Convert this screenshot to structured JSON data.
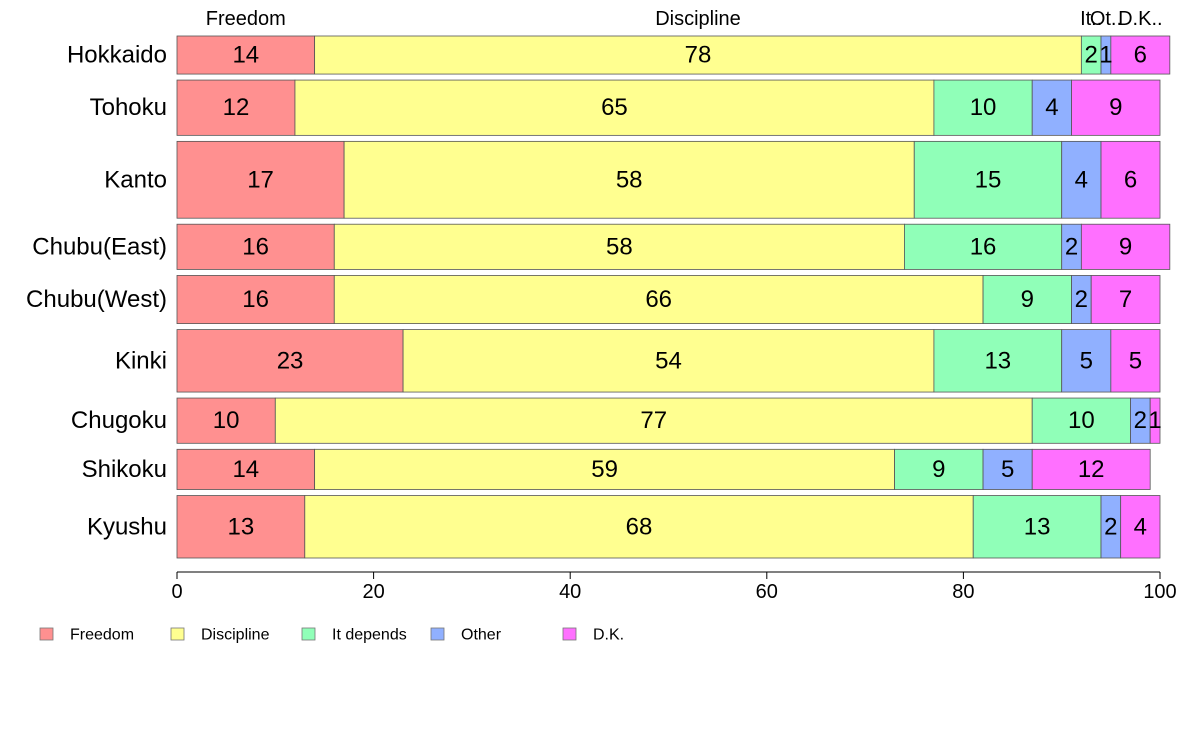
{
  "chart_data": {
    "type": "bar",
    "orientation": "horizontal",
    "stacked": true,
    "title": "",
    "xlabel": "",
    "ylabel": "",
    "xlim": [
      0,
      100
    ],
    "x_ticks": [
      "0",
      "20",
      "40",
      "60",
      "80",
      "100"
    ],
    "legend_position": "bottom-left",
    "grid": false,
    "top_labels": [
      "Freedom",
      "Discipline",
      "It..",
      "Ot..",
      "D.K.."
    ],
    "categories": [
      "Hokkaido",
      "Tohoku",
      "Kanto",
      "Chubu(East)",
      "Chubu(West)",
      "Kinki",
      "Chugoku",
      "Shikoku",
      "Kyushu"
    ],
    "bar_weights": [
      0.53,
      0.77,
      1.07,
      0.63,
      0.67,
      0.87,
      0.63,
      0.56,
      0.87
    ],
    "series": [
      {
        "name": "Freedom",
        "color": "#ff9090",
        "values": [
          14,
          12,
          17,
          16,
          16,
          23,
          10,
          14,
          13
        ]
      },
      {
        "name": "Discipline",
        "color": "#ffff90",
        "values": [
          78,
          65,
          58,
          58,
          66,
          54,
          77,
          59,
          68
        ]
      },
      {
        "name": "It depends",
        "color": "#90ffb8",
        "values": [
          2,
          10,
          15,
          16,
          9,
          13,
          10,
          9,
          13
        ]
      },
      {
        "name": "Other",
        "color": "#90b0ff",
        "values": [
          1,
          4,
          4,
          2,
          2,
          5,
          2,
          5,
          2
        ]
      },
      {
        "name": "D.K.",
        "color": "#ff70ff",
        "values": [
          6,
          9,
          6,
          9,
          7,
          5,
          1,
          12,
          4
        ]
      }
    ]
  }
}
